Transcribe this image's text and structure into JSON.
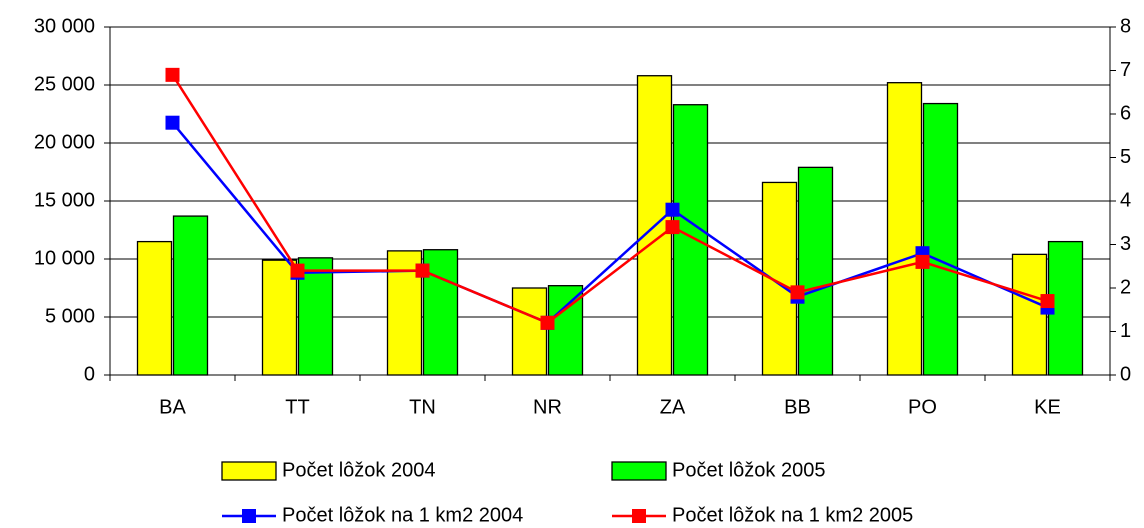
{
  "chart_data": {
    "type": "bar",
    "categories": [
      "BA",
      "TT",
      "TN",
      "NR",
      "ZA",
      "BB",
      "PO",
      "KE"
    ],
    "series": [
      {
        "name": "Počet lôžok 2004",
        "type": "bar",
        "color": "#ffff00",
        "values": [
          11500,
          9900,
          10700,
          7500,
          25800,
          16600,
          25200,
          10400
        ]
      },
      {
        "name": "Počet lôžok 2005",
        "type": "bar",
        "color": "#00ff00",
        "values": [
          13700,
          10100,
          10800,
          7700,
          23300,
          17900,
          23400,
          11500
        ]
      },
      {
        "name": "Počet lôžok na 1 km2 2004",
        "type": "line",
        "axis": "y2",
        "color": "#0000ff",
        "values": [
          5.8,
          2.35,
          2.4,
          1.2,
          3.8,
          1.8,
          2.8,
          1.55
        ]
      },
      {
        "name": "Počet lôžok na 1 km2 2005",
        "type": "line",
        "axis": "y2",
        "color": "#ff0000",
        "values": [
          6.9,
          2.4,
          2.4,
          1.2,
          3.4,
          1.9,
          2.6,
          1.7
        ]
      }
    ],
    "ylim": [
      0,
      30000
    ],
    "yticks": [
      0,
      {
        "value": 5000,
        "label": "5 000"
      },
      {
        "value": 10000,
        "label": "10 000"
      },
      {
        "value": 15000,
        "label": "15 000"
      },
      {
        "value": 20000,
        "label": "20 000"
      },
      {
        "value": 25000,
        "label": "25 000"
      },
      {
        "value": 30000,
        "label": "30 000"
      }
    ],
    "y2lim": [
      0,
      8
    ],
    "y2ticks": [
      0,
      1,
      2,
      3,
      4,
      5,
      6,
      7,
      8
    ],
    "grid": true
  }
}
